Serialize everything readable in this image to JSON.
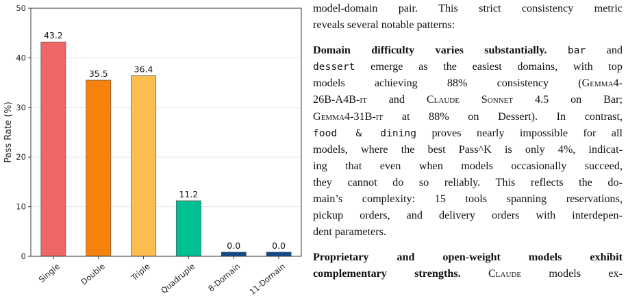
{
  "chart_data": {
    "type": "bar",
    "categories": [
      "Single",
      "Double",
      "Triple",
      "Quadruple",
      "8-Domain",
      "11-Domain"
    ],
    "values": [
      43.2,
      35.5,
      36.4,
      11.2,
      0.0,
      0.0
    ],
    "value_labels": [
      "43.2",
      "35.5",
      "36.4",
      "11.2",
      "0.0",
      "0.0"
    ],
    "colors": [
      "#EE6666",
      "#F5820D",
      "#FBBE4E",
      "#00BF93",
      "#104B8E",
      "#104B8E"
    ],
    "ylabel": "Pass Rate (%)",
    "xlabel": "",
    "ylim": [
      0,
      50
    ],
    "yticks": [
      "0",
      "10",
      "20",
      "30",
      "40",
      "50"
    ],
    "grid": true
  },
  "text": {
    "p1_l1": "model-domain pair. This strict consistency metric",
    "p1_l2": "reveals several notable patterns:",
    "p2_heading": "Domain difficulty varies substantially.",
    "p2_code_bar": "bar",
    "p2_l1_end": "and",
    "p2_code_dessert": "dessert",
    "p2_l2_rest": "emerge as the easiest domains, with top",
    "p2_l3_a": "models achieving 88% consistency (",
    "p2_l3_sc": "Gemma4-",
    "p2_l4_sc1": "26B-A4B-it",
    "p2_l4_mid": "and",
    "p2_l4_sc2": "Claude Sonnet",
    "p2_l4_end": "4.5 on Bar;",
    "p2_l5_sc": "Gemma4-31B-it",
    "p2_l5_end": "at 88% on Dessert). In contrast,",
    "p2_code_food": "food & dining",
    "p2_l6_end": "proves nearly impossible for all",
    "p2_l7": "models, where the best Pass^K is only 4%, indicat-",
    "p2_l8": "ing that even when models occasionally succeed,",
    "p2_l9": "they cannot do so reliably.  This reflects the do-",
    "p2_l10": "main’s complexity: 15 tools spanning reservations,",
    "p2_l11": "pickup orders, and delivery orders with interdepen-",
    "p2_l12": "dent parameters.",
    "p3_heading": "Proprietary and open-weight models exhibit",
    "p3_l2_bold": "complementary strengths.",
    "p3_l2_sc": "Claude",
    "p3_l2_end": "models ex-"
  }
}
